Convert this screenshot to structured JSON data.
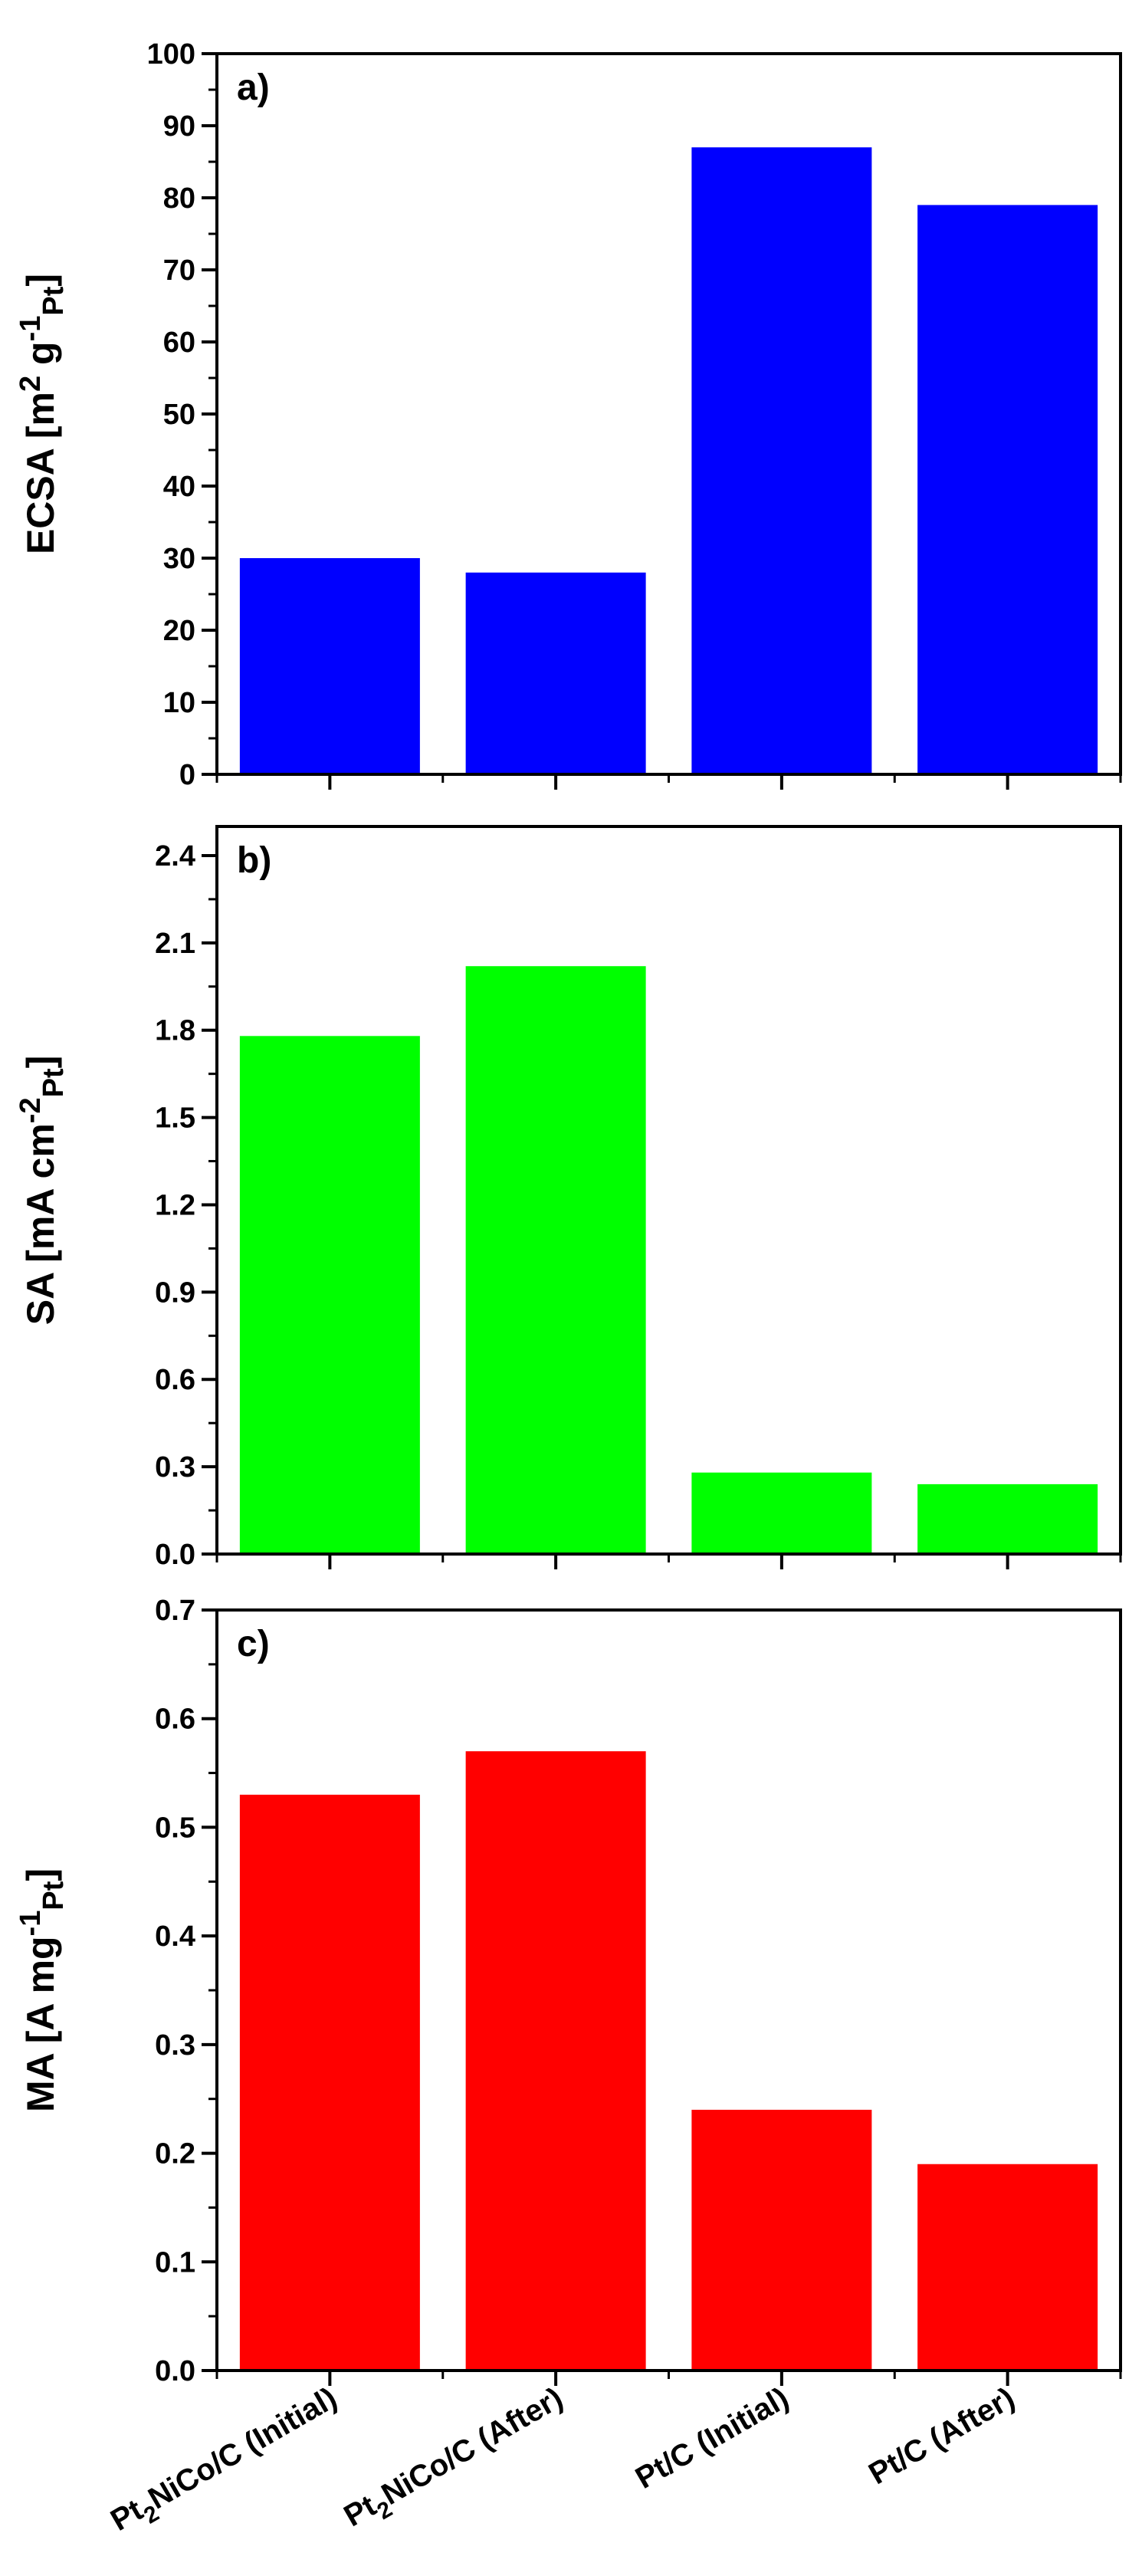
{
  "categories": [
    {
      "main": "Pt",
      "sub": "2",
      "rest": "NiCo/C (Initial)"
    },
    {
      "main": "Pt",
      "sub": "2",
      "rest": "NiCo/C (After)"
    },
    {
      "main": "Pt/C (Initial)",
      "sub": "",
      "rest": ""
    },
    {
      "main": "Pt/C (After)",
      "sub": "",
      "rest": ""
    }
  ],
  "chart_data": [
    {
      "type": "bar",
      "panel_label": "a)",
      "categories": [
        "Pt2NiCo/C (Initial)",
        "Pt2NiCo/C (After)",
        "Pt/C (Initial)",
        "Pt/C (After)"
      ],
      "values": [
        30,
        28,
        87,
        79
      ],
      "ylim": [
        0,
        100
      ],
      "yticks": [
        0,
        10,
        20,
        30,
        40,
        50,
        60,
        70,
        80,
        90,
        100
      ],
      "ytick_labels": [
        "0",
        "10",
        "20",
        "30",
        "40",
        "50",
        "60",
        "70",
        "80",
        "90",
        "100"
      ],
      "ylabel": "ECSA [m2 g-1Pt]",
      "ylabel_parts": [
        {
          "text": "ECSA [m",
          "style": "normal"
        },
        {
          "text": "2",
          "style": "sup"
        },
        {
          "text": " g",
          "style": "normal"
        },
        {
          "text": "-1",
          "style": "sup"
        },
        {
          "text": "Pt",
          "style": "sub"
        },
        {
          "text": "]",
          "style": "normal"
        }
      ],
      "color": "#0000ff",
      "grid": false,
      "xlabel": ""
    },
    {
      "type": "bar",
      "panel_label": "b)",
      "categories": [
        "Pt2NiCo/C (Initial)",
        "Pt2NiCo/C (After)",
        "Pt/C (Initial)",
        "Pt/C (After)"
      ],
      "values": [
        1.78,
        2.02,
        0.28,
        0.24
      ],
      "ylim": [
        0,
        2.5
      ],
      "yticks": [
        0,
        0.3,
        0.6,
        0.9,
        1.2,
        1.5,
        1.8,
        2.1,
        2.4
      ],
      "ytick_labels": [
        "0.0",
        "0.3",
        "0.6",
        "0.9",
        "1.2",
        "1.5",
        "1.8",
        "2.1",
        "2.4"
      ],
      "ylabel": "SA [mA cm-2Pt]",
      "ylabel_parts": [
        {
          "text": "SA [mA cm",
          "style": "normal"
        },
        {
          "text": "-2",
          "style": "sup"
        },
        {
          "text": "Pt",
          "style": "sub"
        },
        {
          "text": "]",
          "style": "normal"
        }
      ],
      "color": "#00ff00",
      "grid": false,
      "xlabel": ""
    },
    {
      "type": "bar",
      "panel_label": "c)",
      "categories": [
        "Pt2NiCo/C (Initial)",
        "Pt2NiCo/C (After)",
        "Pt/C (Initial)",
        "Pt/C (After)"
      ],
      "values": [
        0.53,
        0.57,
        0.24,
        0.19
      ],
      "ylim": [
        0,
        0.7
      ],
      "yticks": [
        0,
        0.1,
        0.2,
        0.3,
        0.4,
        0.5,
        0.6,
        0.7
      ],
      "ytick_labels": [
        "0.0",
        "0.1",
        "0.2",
        "0.3",
        "0.4",
        "0.5",
        "0.6",
        "0.7"
      ],
      "ylabel": "MA [A mg-1Pt]",
      "ylabel_parts": [
        {
          "text": "MA [A mg",
          "style": "normal"
        },
        {
          "text": "-1",
          "style": "sup"
        },
        {
          "text": "Pt",
          "style": "sub"
        },
        {
          "text": "]",
          "style": "normal"
        }
      ],
      "color": "#ff0000",
      "grid": false,
      "xlabel": ""
    }
  ]
}
